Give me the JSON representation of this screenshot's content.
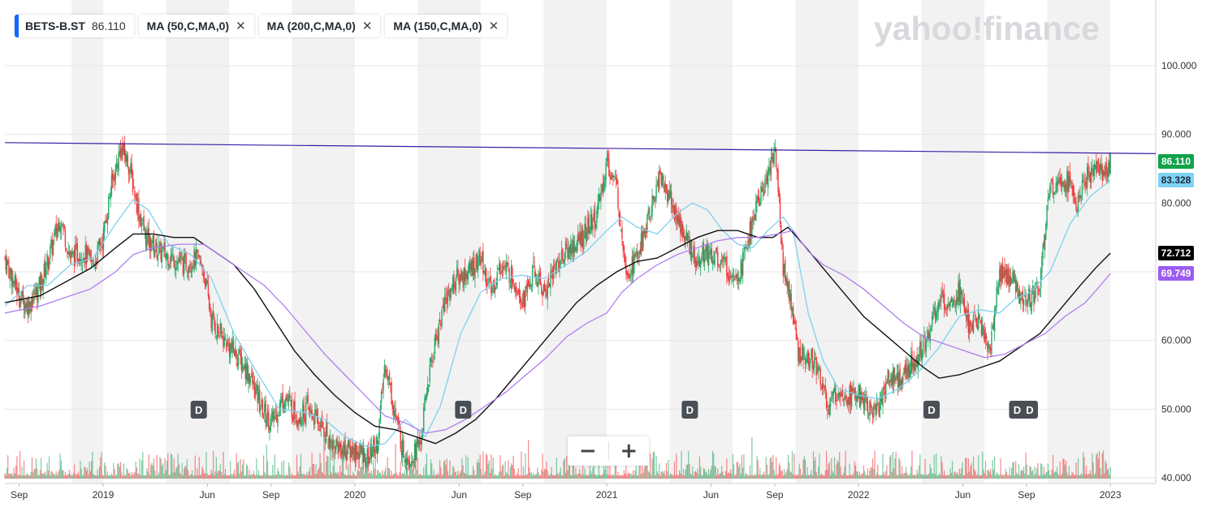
{
  "legend": {
    "ticker_label": "BETS-B.ST",
    "ticker_price": "86.110",
    "studies": [
      {
        "label": "MA (50,C,MA,0)"
      },
      {
        "label": "MA (200,C,MA,0)"
      },
      {
        "label": "MA (150,C,MA,0)"
      }
    ],
    "close_glyph": "✕"
  },
  "watermark": "yahoo!finance",
  "zoom": {
    "minus": "−",
    "plus": "+"
  },
  "price_tags": [
    {
      "text": "86.110",
      "value": 86.11,
      "bg": "#11a24a",
      "fg": "#ffffff"
    },
    {
      "text": "83.328",
      "value": 83.328,
      "bg": "#7fd4f5",
      "fg": "#1b2a3a"
    },
    {
      "text": "72.712",
      "value": 72.712,
      "bg": "#000000",
      "fg": "#ffffff"
    },
    {
      "text": "69.749",
      "value": 69.749,
      "bg": "#9b5cf0",
      "fg": "#ffffff"
    }
  ],
  "colors": {
    "up": "#24a866",
    "down": "#f2383b",
    "ma50": "#7fd0ef",
    "ma200": "#111111",
    "ma150": "#b07ef0",
    "trendline": "#3d1ba3",
    "band": "#f2f2f2"
  },
  "chart_data": {
    "type": "line",
    "title": "",
    "instrument": "BETS-B.ST",
    "chart_style": "candlestick with volume bars",
    "xlabel": "",
    "ylabel": "",
    "ylim": [
      40,
      108
    ],
    "x_range": [
      2018.61,
      2023.18
    ],
    "y_ticks": [
      "100.000",
      "90.000",
      "80.000",
      "70.000",
      "60.000",
      "50.000",
      "40.000"
    ],
    "y_tick_values": [
      100,
      90,
      80,
      70,
      60,
      50,
      40
    ],
    "x_ticks": [
      {
        "label": "Sep",
        "t": 2018.667
      },
      {
        "label": "2019",
        "t": 2019.0
      },
      {
        "label": "Jun",
        "t": 2019.414
      },
      {
        "label": "Sep",
        "t": 2019.667
      },
      {
        "label": "2020",
        "t": 2020.0
      },
      {
        "label": "Jun",
        "t": 2020.414
      },
      {
        "label": "Sep",
        "t": 2020.667
      },
      {
        "label": "2021",
        "t": 2021.0
      },
      {
        "label": "Jun",
        "t": 2021.414
      },
      {
        "label": "Sep",
        "t": 2021.667
      },
      {
        "label": "2022",
        "t": 2022.0
      },
      {
        "label": "Jun",
        "t": 2022.414
      },
      {
        "label": "Sep",
        "t": 2022.667
      },
      {
        "label": "2023",
        "t": 2023.0
      }
    ],
    "close_path": [
      [
        2018.61,
        72
      ],
      [
        2018.66,
        67
      ],
      [
        2018.7,
        65
      ],
      [
        2018.75,
        68
      ],
      [
        2018.8,
        74
      ],
      [
        2018.83,
        78
      ],
      [
        2018.87,
        72
      ],
      [
        2018.92,
        73
      ],
      [
        2018.96,
        71
      ],
      [
        2019.0,
        75
      ],
      [
        2019.03,
        82
      ],
      [
        2019.07,
        88
      ],
      [
        2019.1,
        86
      ],
      [
        2019.14,
        79
      ],
      [
        2019.17,
        75
      ],
      [
        2019.22,
        73
      ],
      [
        2019.28,
        72
      ],
      [
        2019.32,
        71
      ],
      [
        2019.37,
        72
      ],
      [
        2019.4,
        70
      ],
      [
        2019.43,
        63
      ],
      [
        2019.48,
        60
      ],
      [
        2019.53,
        58
      ],
      [
        2019.58,
        55
      ],
      [
        2019.63,
        50
      ],
      [
        2019.67,
        48
      ],
      [
        2019.72,
        52
      ],
      [
        2019.77,
        49
      ],
      [
        2019.81,
        50
      ],
      [
        2019.86,
        48
      ],
      [
        2019.91,
        45
      ],
      [
        2019.96,
        44
      ],
      [
        2020.0,
        44
      ],
      [
        2020.05,
        43
      ],
      [
        2020.09,
        45
      ],
      [
        2020.12,
        57
      ],
      [
        2020.15,
        51
      ],
      [
        2020.19,
        44
      ],
      [
        2020.22,
        43
      ],
      [
        2020.26,
        45
      ],
      [
        2020.29,
        54
      ],
      [
        2020.32,
        60
      ],
      [
        2020.36,
        66
      ],
      [
        2020.4,
        69
      ],
      [
        2020.45,
        70
      ],
      [
        2020.5,
        72
      ],
      [
        2020.54,
        67
      ],
      [
        2020.58,
        71
      ],
      [
        2020.63,
        69
      ],
      [
        2020.67,
        66
      ],
      [
        2020.71,
        70
      ],
      [
        2020.75,
        67
      ],
      [
        2020.8,
        71
      ],
      [
        2020.84,
        73
      ],
      [
        2020.88,
        74
      ],
      [
        2020.92,
        76
      ],
      [
        2020.96,
        78
      ],
      [
        2021.0,
        86
      ],
      [
        2021.04,
        82
      ],
      [
        2021.08,
        70
      ],
      [
        2021.12,
        72
      ],
      [
        2021.16,
        77
      ],
      [
        2021.21,
        84
      ],
      [
        2021.26,
        80
      ],
      [
        2021.3,
        76
      ],
      [
        2021.35,
        72
      ],
      [
        2021.4,
        73
      ],
      [
        2021.44,
        72
      ],
      [
        2021.49,
        70
      ],
      [
        2021.53,
        70
      ],
      [
        2021.57,
        76
      ],
      [
        2021.6,
        80
      ],
      [
        2021.64,
        84
      ],
      [
        2021.67,
        88
      ],
      [
        2021.7,
        71
      ],
      [
        2021.73,
        66
      ],
      [
        2021.76,
        58
      ],
      [
        2021.8,
        58
      ],
      [
        2021.84,
        56
      ],
      [
        2021.88,
        50
      ],
      [
        2021.92,
        53
      ],
      [
        2021.96,
        52
      ],
      [
        2022.0,
        52
      ],
      [
        2022.04,
        50
      ],
      [
        2022.08,
        50
      ],
      [
        2022.12,
        55
      ],
      [
        2022.17,
        54
      ],
      [
        2022.22,
        57
      ],
      [
        2022.27,
        60
      ],
      [
        2022.31,
        65
      ],
      [
        2022.36,
        66
      ],
      [
        2022.4,
        67
      ],
      [
        2022.44,
        62
      ],
      [
        2022.48,
        63
      ],
      [
        2022.52,
        58
      ],
      [
        2022.56,
        70
      ],
      [
        2022.6,
        69
      ],
      [
        2022.64,
        67
      ],
      [
        2022.68,
        66
      ],
      [
        2022.72,
        68
      ],
      [
        2022.75,
        80
      ],
      [
        2022.79,
        84
      ],
      [
        2022.83,
        83
      ],
      [
        2022.87,
        80
      ],
      [
        2022.91,
        84
      ],
      [
        2022.95,
        85
      ],
      [
        2022.98,
        84
      ],
      [
        2023.0,
        86.11
      ]
    ],
    "series": [
      {
        "name": "MA (50,C,MA,0)",
        "color": "#7fd0ef",
        "points": [
          [
            2018.61,
            65
          ],
          [
            2018.7,
            68
          ],
          [
            2018.78,
            68
          ],
          [
            2018.87,
            71
          ],
          [
            2018.96,
            72
          ],
          [
            2019.05,
            77
          ],
          [
            2019.12,
            80.5
          ],
          [
            2019.18,
            79
          ],
          [
            2019.26,
            74
          ],
          [
            2019.35,
            72.5
          ],
          [
            2019.43,
            69
          ],
          [
            2019.52,
            61
          ],
          [
            2019.6,
            56
          ],
          [
            2019.7,
            50
          ],
          [
            2019.8,
            49.5
          ],
          [
            2019.88,
            48.5
          ],
          [
            2019.96,
            46
          ],
          [
            2020.05,
            44.5
          ],
          [
            2020.12,
            45
          ],
          [
            2020.2,
            48.5
          ],
          [
            2020.28,
            46
          ],
          [
            2020.34,
            50.5
          ],
          [
            2020.42,
            61
          ],
          [
            2020.5,
            67
          ],
          [
            2020.58,
            69
          ],
          [
            2020.66,
            69.5
          ],
          [
            2020.75,
            69
          ],
          [
            2020.84,
            71
          ],
          [
            2020.92,
            73
          ],
          [
            2021.0,
            76
          ],
          [
            2021.06,
            78
          ],
          [
            2021.12,
            76.5
          ],
          [
            2021.2,
            75.5
          ],
          [
            2021.28,
            78.5
          ],
          [
            2021.34,
            80
          ],
          [
            2021.4,
            79
          ],
          [
            2021.46,
            76
          ],
          [
            2021.52,
            74
          ],
          [
            2021.58,
            73.5
          ],
          [
            2021.64,
            76
          ],
          [
            2021.7,
            78
          ],
          [
            2021.74,
            76
          ],
          [
            2021.8,
            64
          ],
          [
            2021.86,
            57
          ],
          [
            2021.92,
            53
          ],
          [
            2022.0,
            52
          ],
          [
            2022.08,
            51.5
          ],
          [
            2022.16,
            53
          ],
          [
            2022.24,
            55.5
          ],
          [
            2022.32,
            59
          ],
          [
            2022.4,
            63.5
          ],
          [
            2022.48,
            64.5
          ],
          [
            2022.56,
            64
          ],
          [
            2022.62,
            66
          ],
          [
            2022.68,
            67
          ],
          [
            2022.76,
            70
          ],
          [
            2022.84,
            77
          ],
          [
            2022.92,
            81
          ],
          [
            2023.0,
            83.328
          ]
        ]
      },
      {
        "name": "MA (200,C,MA,0)",
        "color": "#111111",
        "points": [
          [
            2018.61,
            65.5
          ],
          [
            2018.75,
            66.5
          ],
          [
            2018.85,
            68.5
          ],
          [
            2018.95,
            70.5
          ],
          [
            2019.05,
            73.5
          ],
          [
            2019.12,
            75.5
          ],
          [
            2019.2,
            75.5
          ],
          [
            2019.28,
            75
          ],
          [
            2019.36,
            75
          ],
          [
            2019.44,
            73
          ],
          [
            2019.52,
            71
          ],
          [
            2019.6,
            67.5
          ],
          [
            2019.68,
            63
          ],
          [
            2019.76,
            58.5
          ],
          [
            2019.84,
            55
          ],
          [
            2019.92,
            52
          ],
          [
            2020.0,
            49.5
          ],
          [
            2020.08,
            47.5
          ],
          [
            2020.16,
            47
          ],
          [
            2020.24,
            46
          ],
          [
            2020.32,
            45
          ],
          [
            2020.4,
            46.5
          ],
          [
            2020.48,
            48.5
          ],
          [
            2020.56,
            51.5
          ],
          [
            2020.64,
            55
          ],
          [
            2020.72,
            58.5
          ],
          [
            2020.8,
            62
          ],
          [
            2020.88,
            65.5
          ],
          [
            2020.96,
            68
          ],
          [
            2021.04,
            70
          ],
          [
            2021.12,
            71.5
          ],
          [
            2021.2,
            72
          ],
          [
            2021.28,
            73.5
          ],
          [
            2021.36,
            75
          ],
          [
            2021.44,
            76
          ],
          [
            2021.52,
            76
          ],
          [
            2021.6,
            75
          ],
          [
            2021.66,
            75
          ],
          [
            2021.72,
            76.5
          ],
          [
            2021.78,
            74
          ],
          [
            2021.86,
            70.5
          ],
          [
            2021.94,
            67
          ],
          [
            2022.02,
            63.5
          ],
          [
            2022.1,
            61
          ],
          [
            2022.18,
            58.5
          ],
          [
            2022.26,
            56
          ],
          [
            2022.32,
            54.5
          ],
          [
            2022.4,
            55
          ],
          [
            2022.48,
            56
          ],
          [
            2022.56,
            57
          ],
          [
            2022.64,
            59
          ],
          [
            2022.72,
            61
          ],
          [
            2022.8,
            64.5
          ],
          [
            2022.88,
            68
          ],
          [
            2022.94,
            70.5
          ],
          [
            2023.0,
            72.712
          ]
        ]
      },
      {
        "name": "MA (150,C,MA,0)",
        "color": "#b07ef0",
        "points": [
          [
            2018.61,
            64
          ],
          [
            2018.75,
            65
          ],
          [
            2018.87,
            66.5
          ],
          [
            2018.95,
            67.5
          ],
          [
            2019.05,
            70
          ],
          [
            2019.12,
            72.5
          ],
          [
            2019.2,
            73.5
          ],
          [
            2019.3,
            74
          ],
          [
            2019.4,
            74
          ],
          [
            2019.48,
            72
          ],
          [
            2019.56,
            70
          ],
          [
            2019.64,
            68
          ],
          [
            2019.72,
            65
          ],
          [
            2019.8,
            61.5
          ],
          [
            2019.88,
            58
          ],
          [
            2019.96,
            55
          ],
          [
            2020.04,
            52
          ],
          [
            2020.12,
            49
          ],
          [
            2020.2,
            48
          ],
          [
            2020.28,
            46.5
          ],
          [
            2020.36,
            47
          ],
          [
            2020.44,
            48.5
          ],
          [
            2020.52,
            50.5
          ],
          [
            2020.6,
            52.5
          ],
          [
            2020.68,
            55
          ],
          [
            2020.76,
            57.5
          ],
          [
            2020.84,
            60.5
          ],
          [
            2020.92,
            62.5
          ],
          [
            2021.0,
            64
          ],
          [
            2021.06,
            67
          ],
          [
            2021.12,
            69
          ],
          [
            2021.2,
            71
          ],
          [
            2021.28,
            72.5
          ],
          [
            2021.36,
            73.5
          ],
          [
            2021.44,
            74.5
          ],
          [
            2021.52,
            75
          ],
          [
            2021.6,
            75
          ],
          [
            2021.68,
            75.5
          ],
          [
            2021.74,
            76
          ],
          [
            2021.8,
            73
          ],
          [
            2021.86,
            71
          ],
          [
            2021.94,
            69.5
          ],
          [
            2022.02,
            67.5
          ],
          [
            2022.1,
            65
          ],
          [
            2022.18,
            62.5
          ],
          [
            2022.26,
            60.5
          ],
          [
            2022.34,
            59.5
          ],
          [
            2022.42,
            58.5
          ],
          [
            2022.5,
            57.5
          ],
          [
            2022.58,
            58
          ],
          [
            2022.66,
            59.5
          ],
          [
            2022.74,
            61
          ],
          [
            2022.82,
            63.5
          ],
          [
            2022.9,
            65.5
          ],
          [
            2022.96,
            68
          ],
          [
            2023.0,
            69.749
          ]
        ]
      }
    ],
    "trendline": {
      "from": [
        2018.61,
        88.8
      ],
      "to": [
        2023.18,
        87.2
      ]
    },
    "dividend_markers": [
      2019.38,
      2020.43,
      2021.33,
      2022.29,
      2022.63,
      2022.68
    ],
    "dividend_label": "D"
  }
}
